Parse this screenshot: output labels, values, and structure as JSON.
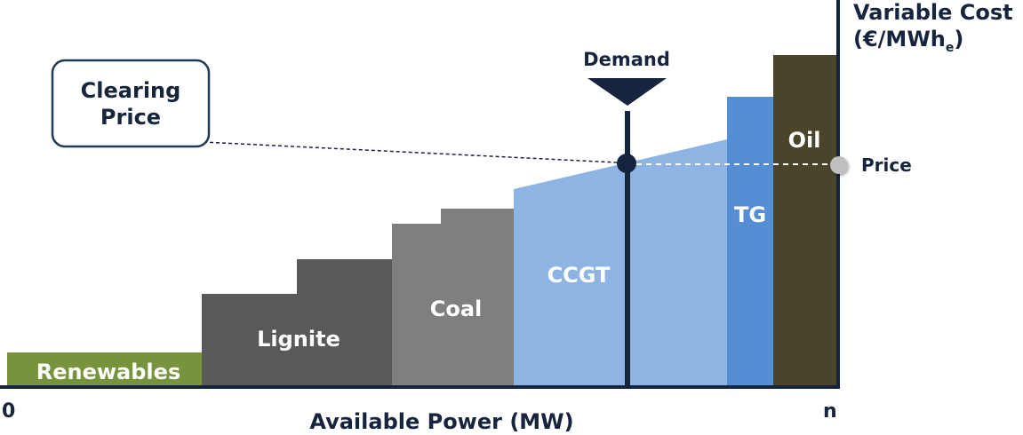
{
  "colors": {
    "renewables": "#77933C",
    "lignite": "#595959",
    "coal": "#7F7F7F",
    "ccgt": "#8EB4E3",
    "tg": "#558ED5",
    "oil": "#4A452A",
    "navy": "#17243D",
    "callout_border": "#1F3A5A",
    "price_marker": "#BFBFBF",
    "text_dark": "#17243D",
    "label_on_fill": "#FFFFFF"
  },
  "axis": {
    "y_label_line1": "Variable Cost",
    "y_label_line2_main": "(€/MWh",
    "y_label_line2_sub": "e",
    "y_label_line2_close": ")",
    "x_label": "Available Power (MW)",
    "x_start": "0",
    "x_end": "n"
  },
  "demand": {
    "label": "Demand"
  },
  "price": {
    "label": "Price"
  },
  "callout": {
    "line1": "Clearing",
    "line2": "Price"
  },
  "blocks": [
    {
      "id": "renewables",
      "label": "Renewables"
    },
    {
      "id": "lignite",
      "label": "Lignite"
    },
    {
      "id": "coal",
      "label": "Coal"
    },
    {
      "id": "ccgt",
      "label": "CCGT"
    },
    {
      "id": "tg",
      "label": "TG"
    },
    {
      "id": "oil",
      "label": "Oil"
    }
  ]
}
